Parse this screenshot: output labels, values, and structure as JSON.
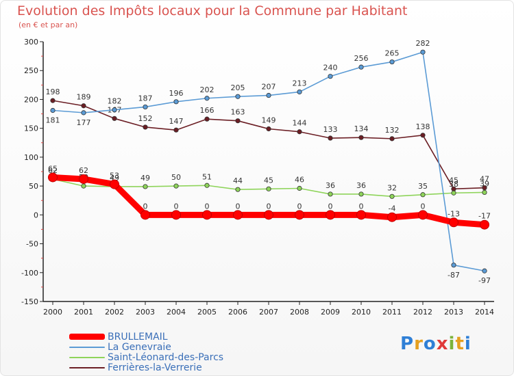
{
  "title": "Evolution des Impôts locaux pour la Commune par Habitant",
  "subtitle": "(en € et par an)",
  "logo": {
    "text": "Proxiti",
    "colors": [
      "#2f7fd6",
      "#e5a020",
      "#2f7fd6",
      "#e03a3a",
      "#7cb33a",
      "#e5a020",
      "#2f7fd6"
    ]
  },
  "chart_data": {
    "type": "line",
    "title": "Evolution des Impôts locaux pour la Commune par Habitant",
    "ylabel": "(en € et par an)",
    "xlabel": "",
    "ylim": [
      -150,
      300
    ],
    "yticks": [
      -150,
      -100,
      -50,
      0,
      50,
      100,
      150,
      200,
      250,
      300
    ],
    "categories": [
      "2000",
      "2001",
      "2002",
      "2003",
      "2004",
      "2005",
      "2006",
      "2007",
      "2008",
      "2009",
      "2010",
      "2011",
      "2012",
      "2013",
      "2014"
    ],
    "series": [
      {
        "name": "Ferrières-la-Verrerie",
        "color": "#6b1e24",
        "values": [
          198,
          189,
          167,
          152,
          147,
          166,
          163,
          149,
          144,
          133,
          134,
          132,
          138,
          45,
          47
        ],
        "labels": [
          "198",
          "189",
          "167",
          "152",
          "147",
          "166",
          "163",
          "149",
          "144",
          "133",
          "134",
          "132",
          "138",
          "45",
          "47"
        ]
      },
      {
        "name": "Saint-Léonard-des-Parcs",
        "color": "#8ed45a",
        "values": [
          62,
          50,
          49,
          49,
          50,
          51,
          44,
          45,
          46,
          36,
          36,
          32,
          35,
          38,
          39
        ],
        "labels": [
          "62",
          "50",
          "49",
          "49",
          "50",
          "51",
          "44",
          "45",
          "46",
          "36",
          "36",
          "32",
          "35",
          "38",
          "39"
        ]
      },
      {
        "name": "La Genevraie",
        "color": "#5b9bd5",
        "values": [
          181,
          177,
          182,
          187,
          196,
          202,
          205,
          207,
          213,
          240,
          256,
          265,
          282,
          -87,
          -97
        ],
        "labels": [
          "181",
          "177",
          "182",
          "187",
          "196",
          "202",
          "205",
          "207",
          "213",
          "240",
          "256",
          "265",
          "282",
          "-87",
          "-97"
        ]
      },
      {
        "name": "BRULLEMAIL",
        "color": "#ff0000",
        "values": [
          65,
          62,
          53,
          0,
          0,
          0,
          0,
          0,
          0,
          0,
          0,
          -4,
          0,
          -13,
          -17
        ],
        "labels": [
          "65",
          "62",
          "53",
          "0",
          "0",
          "0",
          "0",
          "0",
          "0",
          "0",
          "0",
          "-4",
          "0",
          "-13",
          "-17"
        ]
      }
    ],
    "legend": [
      "BRULLEMAIL",
      "La Genevraie",
      "Saint-Léonard-des-Parcs",
      "Ferrières-la-Verrerie"
    ],
    "legend_position": "bottom-left",
    "grid": false
  }
}
